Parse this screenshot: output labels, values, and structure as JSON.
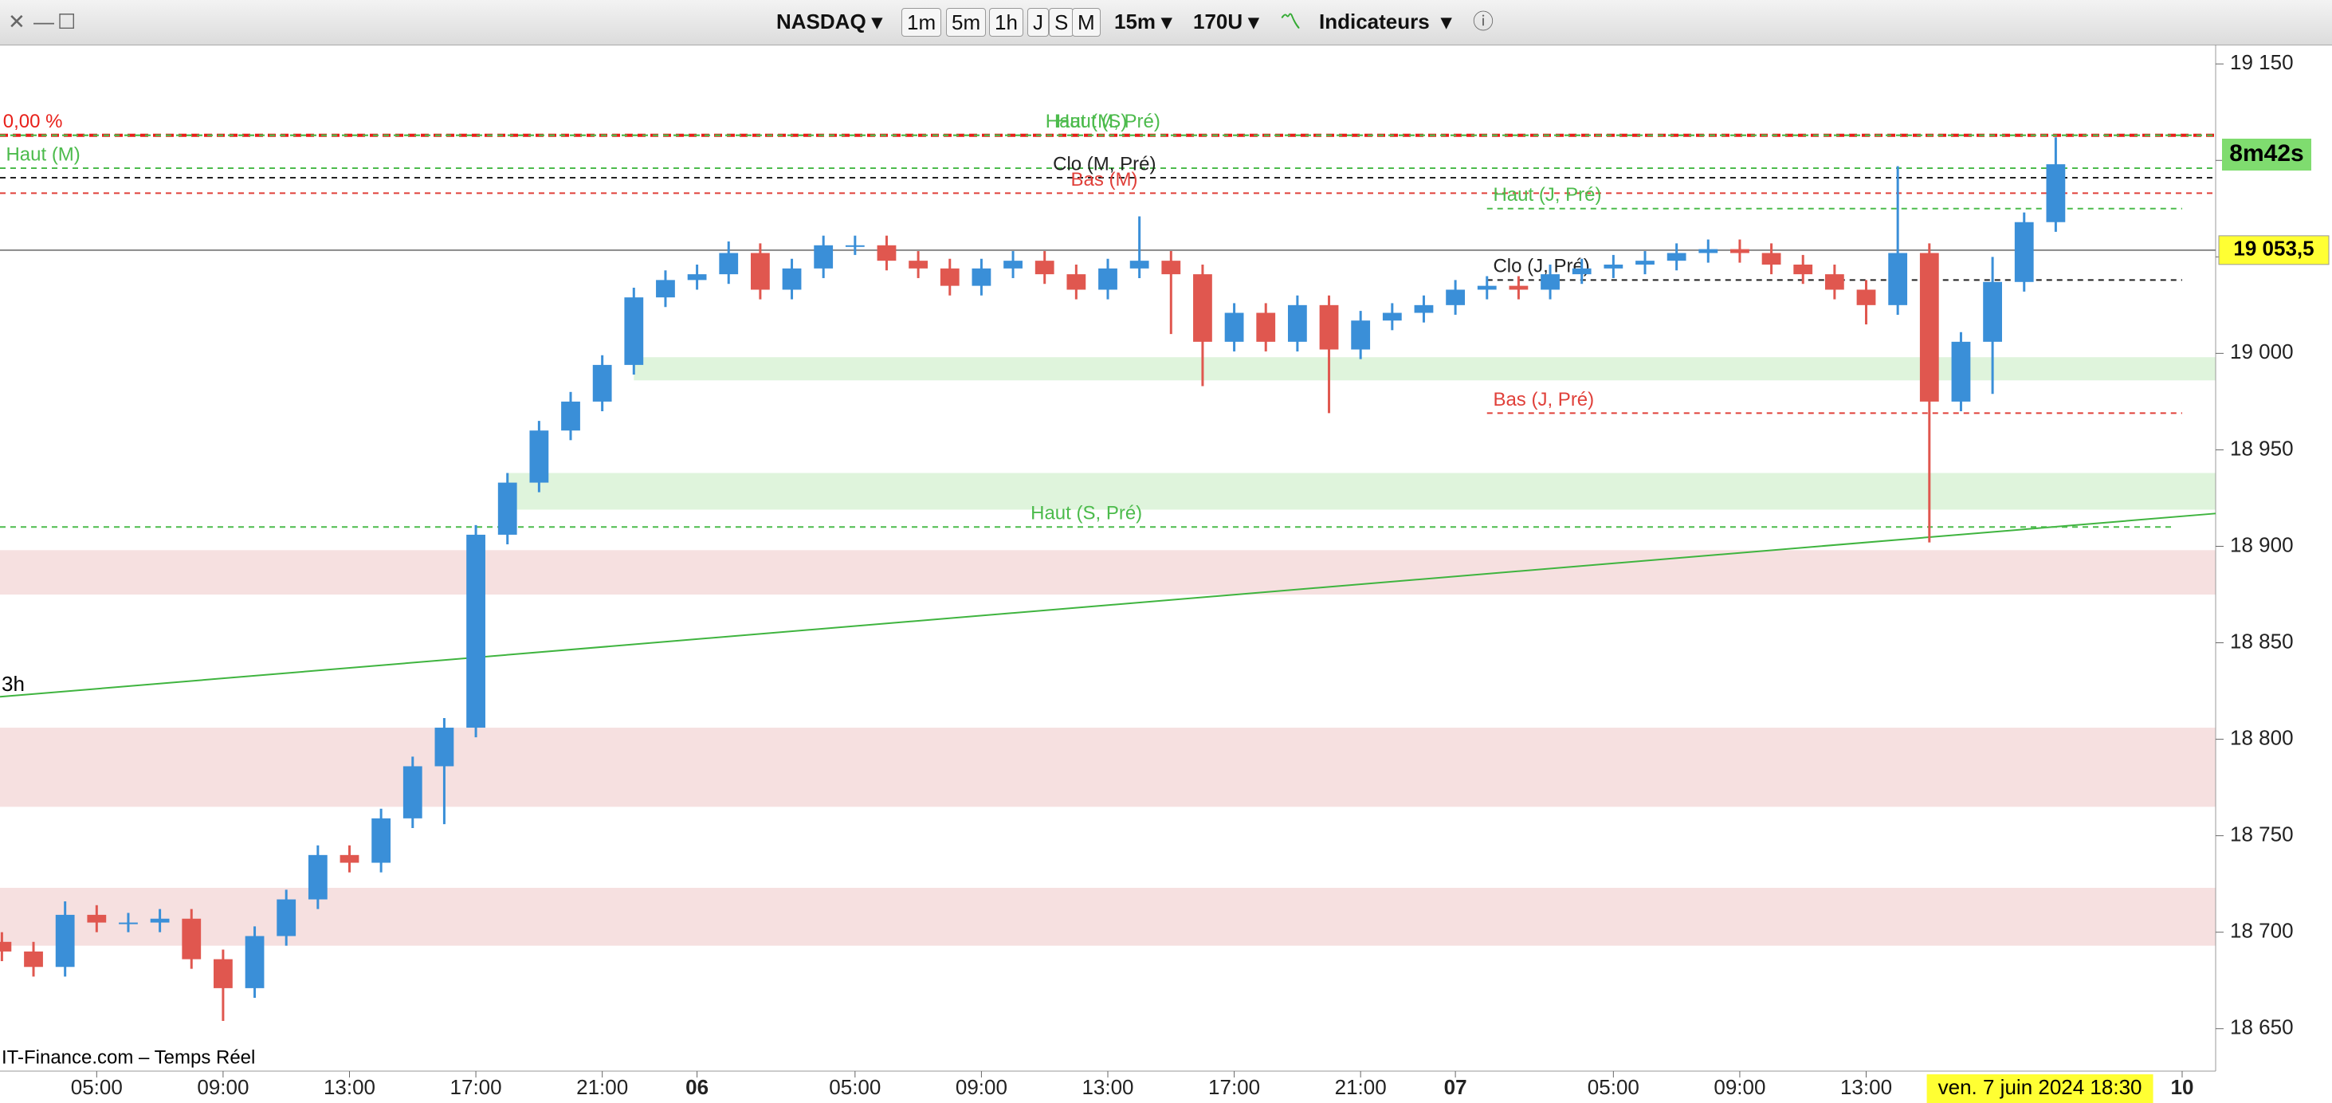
{
  "toolbar": {
    "symbol": "NASDAQ",
    "periods": [
      "1m",
      "5m",
      "1h",
      "J",
      "S",
      "M"
    ],
    "interval": "15m",
    "units": "170U",
    "indicators": "Indicateurs"
  },
  "chart_data": {
    "type": "candlestick",
    "source": "IT-Finance.com – Temps Réel",
    "timer": "8m42s",
    "corner_label": "3h",
    "up_color": "#3a8fd8",
    "down_color": "#e0574f",
    "candles": {
      "x": [
        2,
        3,
        4,
        5,
        6,
        7,
        8,
        9,
        10,
        11,
        12,
        13,
        14,
        15,
        16,
        17,
        18,
        19,
        20,
        21,
        22,
        23,
        24,
        25,
        26,
        27,
        28,
        29,
        30,
        31,
        32,
        33,
        34,
        35,
        36,
        37,
        38,
        39,
        40,
        41,
        42,
        43,
        44,
        45,
        46,
        47,
        48,
        49,
        50,
        51,
        52,
        53,
        54,
        55,
        56,
        57,
        58,
        59,
        60,
        61,
        62,
        63,
        64,
        65,
        66,
        67
      ],
      "open": [
        18695,
        18690,
        18682,
        18709,
        18705,
        18705,
        18707,
        18686,
        18671,
        18698,
        18717,
        18740,
        18736,
        18759,
        18786,
        18806,
        18906,
        18933,
        18960,
        18975,
        18994,
        19029,
        19038,
        19041,
        19052,
        19033,
        19044,
        19056,
        19056,
        19048,
        19044,
        19035,
        19044,
        19048,
        19041,
        19033,
        19044,
        19048,
        19041,
        19006,
        19021,
        19006,
        19025,
        19002,
        19017,
        19021,
        19025,
        19033,
        19035,
        19033,
        19041,
        19044,
        19046,
        19048,
        19052,
        19054,
        19052,
        19046,
        19041,
        19033,
        19025,
        19052,
        18975,
        19006,
        19037,
        19068
      ],
      "high": [
        18700,
        18695,
        18716,
        18714,
        18710,
        18712,
        18712,
        18691,
        18703,
        18722,
        18745,
        18745,
        18764,
        18791,
        18811,
        18911,
        18938,
        18965,
        18980,
        18999,
        19034,
        19043,
        19046,
        19058,
        19057,
        19049,
        19061,
        19061,
        19061,
        19053,
        19049,
        19049,
        19053,
        19053,
        19046,
        19049,
        19071,
        19053,
        19046,
        19026,
        19026,
        19030,
        19030,
        19022,
        19026,
        19030,
        19038,
        19040,
        19040,
        19046,
        19049,
        19051,
        19053,
        19057,
        19059,
        19059,
        19057,
        19051,
        19046,
        19038,
        19097,
        19057,
        19011,
        19050,
        19073,
        19112
      ],
      "low": [
        18685,
        18677,
        18677,
        18700,
        18700,
        18700,
        18681,
        18654,
        18666,
        18693,
        18712,
        18731,
        18731,
        18754,
        18756,
        18801,
        18901,
        18928,
        18955,
        18970,
        18989,
        19024,
        19033,
        19036,
        19028,
        19028,
        19039,
        19051,
        19043,
        19039,
        19030,
        19030,
        19039,
        19036,
        19028,
        19028,
        19039,
        19010,
        18983,
        19001,
        19001,
        19001,
        18969,
        18997,
        19012,
        19016,
        19020,
        19028,
        19028,
        19028,
        19036,
        19039,
        19041,
        19043,
        19047,
        19047,
        19041,
        19036,
        19028,
        19015,
        19020,
        18902,
        18970,
        18979,
        19032,
        19063
      ],
      "close": [
        18690,
        18682,
        18709,
        18705,
        18705,
        18707,
        18686,
        18671,
        18698,
        18717,
        18740,
        18736,
        18759,
        18786,
        18806,
        18906,
        18933,
        18960,
        18975,
        18994,
        19029,
        19038,
        19041,
        19052,
        19033,
        19044,
        19056,
        19056,
        19048,
        19044,
        19035,
        19044,
        19048,
        19041,
        19033,
        19044,
        19048,
        19041,
        19006,
        19021,
        19006,
        19025,
        19002,
        19017,
        19021,
        19025,
        19033,
        19035,
        19033,
        19041,
        19044,
        19046,
        19048,
        19052,
        19054,
        19052,
        19046,
        19041,
        19033,
        19025,
        19052,
        18975,
        19006,
        19037,
        19068,
        19098
      ]
    },
    "levels": [
      {
        "name": "0,00 %",
        "value": 19113,
        "color": "#e8201a"
      },
      {
        "name": "Haut (M, Pré)",
        "value": 19113,
        "color": "#4cbb4c"
      },
      {
        "name": "Haut (S)",
        "value": 19113,
        "color": "#4cbb4c"
      },
      {
        "name": "Haut (M)",
        "value": 19096,
        "color": "#4cbb4c"
      },
      {
        "name": "Clo (M, Pré)",
        "value": 19091,
        "color": "#222222"
      },
      {
        "name": "Bas (M)",
        "value": 19083,
        "color": "#e0403a"
      },
      {
        "name": "Haut (J, Pré)",
        "value": 19075,
        "color": "#4cbb4c",
        "from": 49,
        "to": 71
      },
      {
        "name": "Clo (J, Pré)",
        "value": 19038,
        "color": "#222222",
        "from": 49,
        "to": 71
      },
      {
        "name": "Bas (J, Pré)",
        "value": 18969,
        "color": "#e0403a",
        "from": 49,
        "to": 71
      },
      {
        "name": "Haut (S, Pré)",
        "value": 18910,
        "color": "#4cbb4c",
        "to": 70.7
      }
    ],
    "zones": [
      {
        "from": 18986,
        "to": 18998,
        "color": "#dff4dc",
        "start": 22
      },
      {
        "from": 18919,
        "to": 18938,
        "color": "#dff4dc",
        "start": 18
      },
      {
        "from": 18875,
        "to": 18898,
        "color": "#f6e0e0"
      },
      {
        "from": 18765,
        "to": 18806,
        "color": "#f6e0e0"
      },
      {
        "from": 18693,
        "to": 18723,
        "color": "#f6e0e0"
      }
    ],
    "trendline": {
      "x": [
        1.94,
        72.06
      ],
      "y": [
        18822,
        18917
      ],
      "color": "#3fb43f"
    },
    "last_price": {
      "value": 19053.5,
      "label": "19 053,5"
    },
    "cursor": {
      "x": 66.5,
      "label": "ven. 7 juin 2024 18:30"
    },
    "xlim": [
      1.94,
      72.06
    ],
    "ylim": [
      18628,
      19160
    ],
    "xticks": [
      {
        "value": 5,
        "label": "05:00"
      },
      {
        "value": 9,
        "label": "09:00"
      },
      {
        "value": 13,
        "label": "13:00"
      },
      {
        "value": 17,
        "label": "17:00"
      },
      {
        "value": 21,
        "label": "21:00"
      },
      {
        "value": 24,
        "label": "06"
      },
      {
        "value": 29,
        "label": "05:00"
      },
      {
        "value": 33,
        "label": "09:00"
      },
      {
        "value": 37,
        "label": "13:00"
      },
      {
        "value": 41,
        "label": "17:00"
      },
      {
        "value": 45,
        "label": "21:00"
      },
      {
        "value": 48,
        "label": "07"
      },
      {
        "value": 53,
        "label": "05:00"
      },
      {
        "value": 57,
        "label": "09:00"
      },
      {
        "value": 61,
        "label": "13:00"
      },
      {
        "value": 71,
        "label": "10"
      }
    ],
    "yticks": [
      {
        "value": 18650,
        "label": "18 650"
      },
      {
        "value": 18700,
        "label": "18 700"
      },
      {
        "value": 18750,
        "label": "18 750"
      },
      {
        "value": 18800,
        "label": "18 800"
      },
      {
        "value": 18850,
        "label": "18 850"
      },
      {
        "value": 18900,
        "label": "18 900"
      },
      {
        "value": 18950,
        "label": "18 950"
      },
      {
        "value": 19000,
        "label": "19 000"
      },
      {
        "value": 19050,
        "label": "19 050"
      },
      {
        "value": 19100,
        "label": "19 100"
      },
      {
        "value": 19150,
        "label": "19 150"
      }
    ]
  }
}
